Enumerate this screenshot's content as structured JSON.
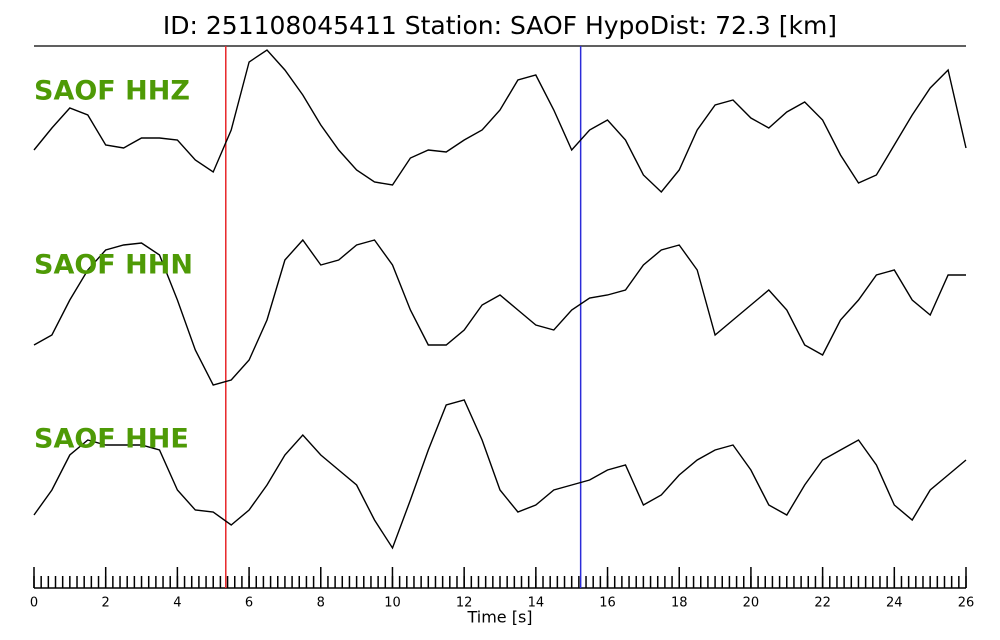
{
  "chart_data": {
    "type": "line",
    "title": "ID: 251108045411   Station: SAOF   HypoDist:     72.3 [km]",
    "xlabel": "Time [s]",
    "xlim": [
      0,
      26
    ],
    "xticks": [
      0,
      2,
      4,
      6,
      8,
      10,
      12,
      14,
      16,
      18,
      20,
      22,
      24,
      26
    ],
    "xminor": 0.2,
    "ylim": [
      -1,
      1
    ],
    "x": [
      0,
      0.5,
      1,
      1.5,
      2,
      2.5,
      3,
      3.5,
      4,
      4.5,
      5,
      5.5,
      6,
      6.5,
      7,
      7.5,
      8,
      8.5,
      9,
      9.5,
      10,
      10.5,
      11,
      11.5,
      12,
      12.5,
      13,
      13.5,
      14,
      14.5,
      15,
      15.5,
      16,
      16.5,
      17,
      17.5,
      18,
      18.5,
      19,
      19.5,
      20,
      20.5,
      21,
      21.5,
      22,
      22.5,
      23,
      23.5,
      24,
      24.5,
      25,
      25.5,
      26
    ],
    "series": [
      {
        "name": "SAOF HHZ",
        "color": "#000000",
        "values": [
          -0.28,
          -0.06,
          0.14,
          0.07,
          -0.23,
          -0.26,
          -0.16,
          -0.16,
          -0.18,
          -0.38,
          -0.5,
          -0.08,
          0.6,
          0.72,
          0.52,
          0.27,
          -0.03,
          -0.28,
          -0.48,
          -0.6,
          -0.63,
          -0.36,
          -0.28,
          -0.3,
          -0.18,
          -0.08,
          0.12,
          0.42,
          0.47,
          0.12,
          -0.28,
          -0.08,
          0.02,
          -0.18,
          -0.53,
          -0.7,
          -0.48,
          -0.08,
          0.17,
          0.22,
          0.04,
          -0.06,
          0.1,
          0.2,
          0.02,
          -0.33,
          -0.61,
          -0.53,
          -0.23,
          0.07,
          0.34,
          0.52,
          -0.26
        ]
      },
      {
        "name": "SAOF HHN",
        "color": "#000000",
        "values": [
          -0.47,
          -0.37,
          -0.02,
          0.28,
          0.48,
          0.53,
          0.55,
          0.43,
          -0.02,
          -0.52,
          -0.87,
          -0.82,
          -0.62,
          -0.22,
          0.38,
          0.58,
          0.33,
          0.38,
          0.53,
          0.58,
          0.33,
          -0.12,
          -0.47,
          -0.47,
          -0.32,
          -0.07,
          0.03,
          -0.12,
          -0.27,
          -0.32,
          -0.12,
          0.0,
          0.03,
          0.08,
          0.33,
          0.48,
          0.53,
          0.28,
          -0.37,
          -0.22,
          -0.07,
          0.08,
          -0.12,
          -0.47,
          -0.57,
          -0.22,
          -0.02,
          0.23,
          0.28,
          -0.02,
          -0.17,
          0.23,
          0.23
        ]
      },
      {
        "name": "SAOF HHE",
        "color": "#000000",
        "values": [
          -0.42,
          -0.17,
          0.18,
          0.33,
          0.28,
          0.28,
          0.28,
          0.23,
          -0.17,
          -0.37,
          -0.39,
          -0.52,
          -0.37,
          -0.12,
          0.18,
          0.38,
          0.18,
          0.03,
          -0.12,
          -0.47,
          -0.75,
          -0.27,
          0.23,
          0.68,
          0.73,
          0.33,
          -0.17,
          -0.39,
          -0.32,
          -0.17,
          -0.12,
          -0.07,
          0.03,
          0.08,
          -0.32,
          -0.22,
          -0.02,
          0.13,
          0.23,
          0.28,
          0.03,
          -0.32,
          -0.42,
          -0.12,
          0.13,
          0.23,
          0.33,
          0.08,
          -0.32,
          -0.47,
          -0.17,
          -0.02,
          0.13
        ]
      }
    ],
    "vlines": [
      {
        "x": 5.35,
        "color": "#e8262a"
      },
      {
        "x": 15.25,
        "color": "#2b2bd9"
      }
    ]
  }
}
